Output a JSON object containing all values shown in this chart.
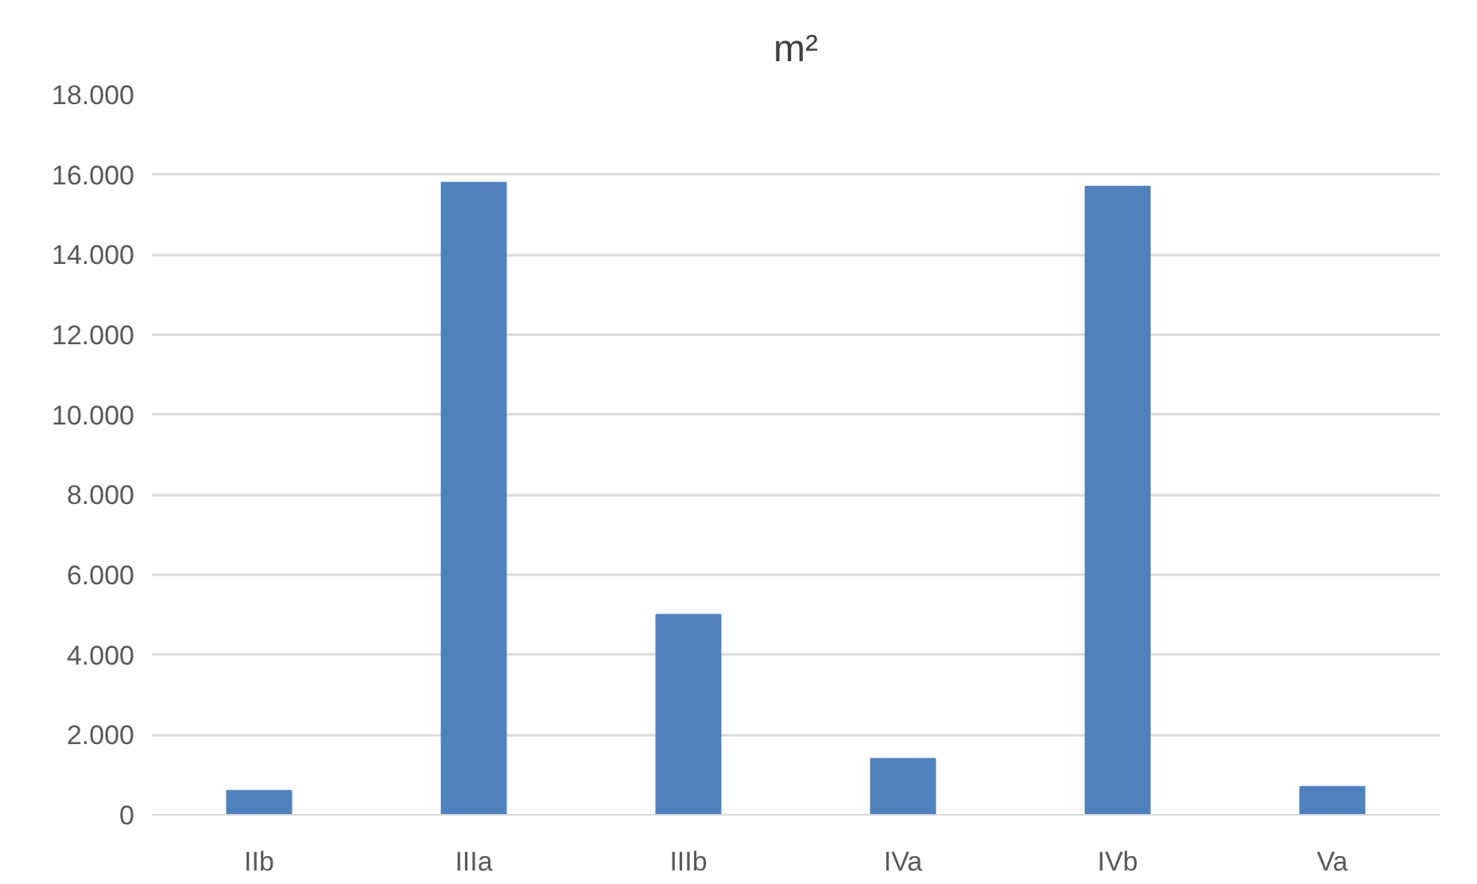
{
  "chart_data": {
    "type": "bar",
    "title": "m²",
    "categories": [
      "IIb",
      "IIIa",
      "IIIb",
      "IVa",
      "IVb",
      "Va"
    ],
    "values": [
      600,
      15800,
      5000,
      1400,
      15700,
      700
    ],
    "color": "#4f81bd",
    "ylim": [
      0,
      18000
    ],
    "yticks": [
      0,
      {
        "value": 2000,
        "label": "2.000"
      },
      {
        "value": 4000,
        "label": "4.000"
      },
      {
        "value": 6000,
        "label": "6.000"
      },
      {
        "value": 8000,
        "label": "8.000"
      },
      {
        "value": 10000,
        "label": "10.000"
      },
      {
        "value": 12000,
        "label": "12.000"
      },
      {
        "value": 14000,
        "label": "14.000"
      },
      {
        "value": 16000,
        "label": "16.000"
      },
      {
        "value": 18000,
        "label": "18.000"
      }
    ],
    "grid": "y"
  }
}
